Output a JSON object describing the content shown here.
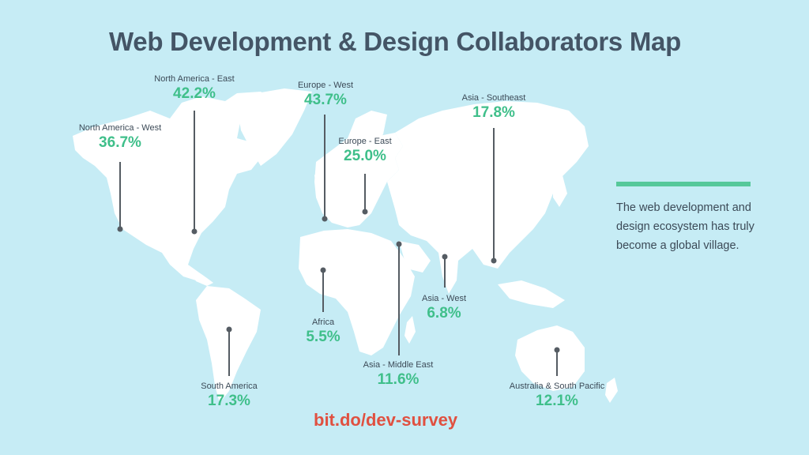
{
  "title": "Web Development & Design Collaborators Map",
  "regions": [
    {
      "name": "North America - East",
      "value": "42.2%"
    },
    {
      "name": "North America - West",
      "value": "36.7%"
    },
    {
      "name": "Europe - West",
      "value": "43.7%"
    },
    {
      "name": "Europe - East",
      "value": "25.0%"
    },
    {
      "name": "Asia - Southeast",
      "value": "17.8%"
    },
    {
      "name": "Africa",
      "value": "5.5%"
    },
    {
      "name": "Asia - West",
      "value": "6.8%"
    },
    {
      "name": "Asia - Middle East",
      "value": "11.6%"
    },
    {
      "name": "South America",
      "value": "17.3%"
    },
    {
      "name": "Australia & South Pacific",
      "value": "12.1%"
    }
  ],
  "side_text": "The web development and design ecosystem has truly become a global village.",
  "footer_link": "bit.do/dev-survey",
  "colors": {
    "background": "#c6ecf5",
    "land": "#ffffff",
    "value_green": "#3fbf8a",
    "accent_bar": "#56c89a",
    "title_text": "#445566",
    "link_red": "#e05040",
    "pin": "#555c63"
  }
}
